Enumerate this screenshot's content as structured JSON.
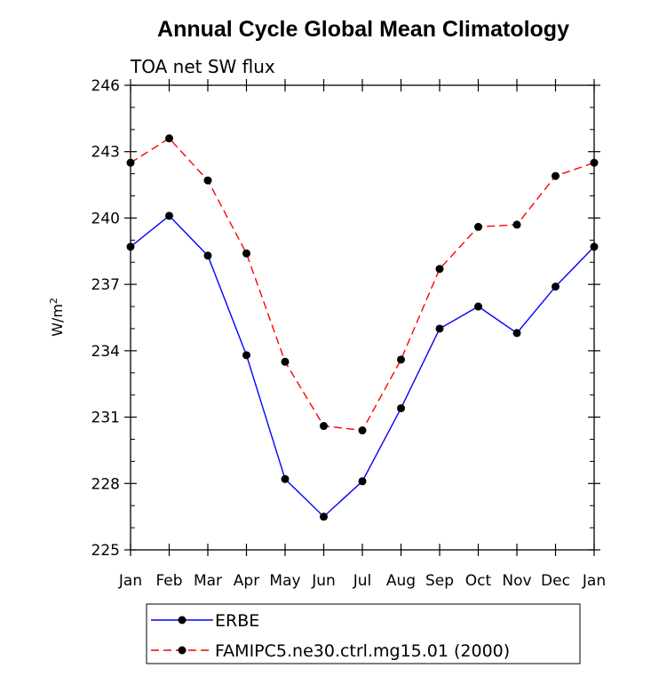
{
  "chart_data": {
    "type": "line",
    "title": "Annual Cycle Global Mean Climatology",
    "subtitle": "TOA net SW flux",
    "ylabel": "W/m",
    "ylabel_superscript": "2",
    "xlabel": "",
    "categories": [
      "Jan",
      "Feb",
      "Mar",
      "Apr",
      "May",
      "Jun",
      "Jul",
      "Aug",
      "Sep",
      "Oct",
      "Nov",
      "Dec",
      "Jan"
    ],
    "ylim": [
      225,
      246
    ],
    "yticks": [
      "225",
      "228",
      "231",
      "234",
      "237",
      "240",
      "243",
      "246"
    ],
    "grid": false,
    "legend_position": "bottom",
    "series": [
      {
        "name": "ERBE",
        "color": "#0000ff",
        "line_style": "solid",
        "marker": "circle",
        "values": [
          238.7,
          240.1,
          238.3,
          233.8,
          228.2,
          226.5,
          228.1,
          231.4,
          235.0,
          236.0,
          234.8,
          236.9,
          238.7
        ]
      },
      {
        "name": "FAMIPC5.ne30.ctrl.mg15.01 (2000)",
        "color": "#ff0000",
        "line_style": "dashed",
        "marker": "circle",
        "values": [
          242.5,
          243.6,
          241.7,
          238.4,
          233.5,
          230.6,
          230.4,
          233.6,
          237.7,
          239.6,
          239.7,
          241.9,
          242.5
        ]
      }
    ]
  }
}
